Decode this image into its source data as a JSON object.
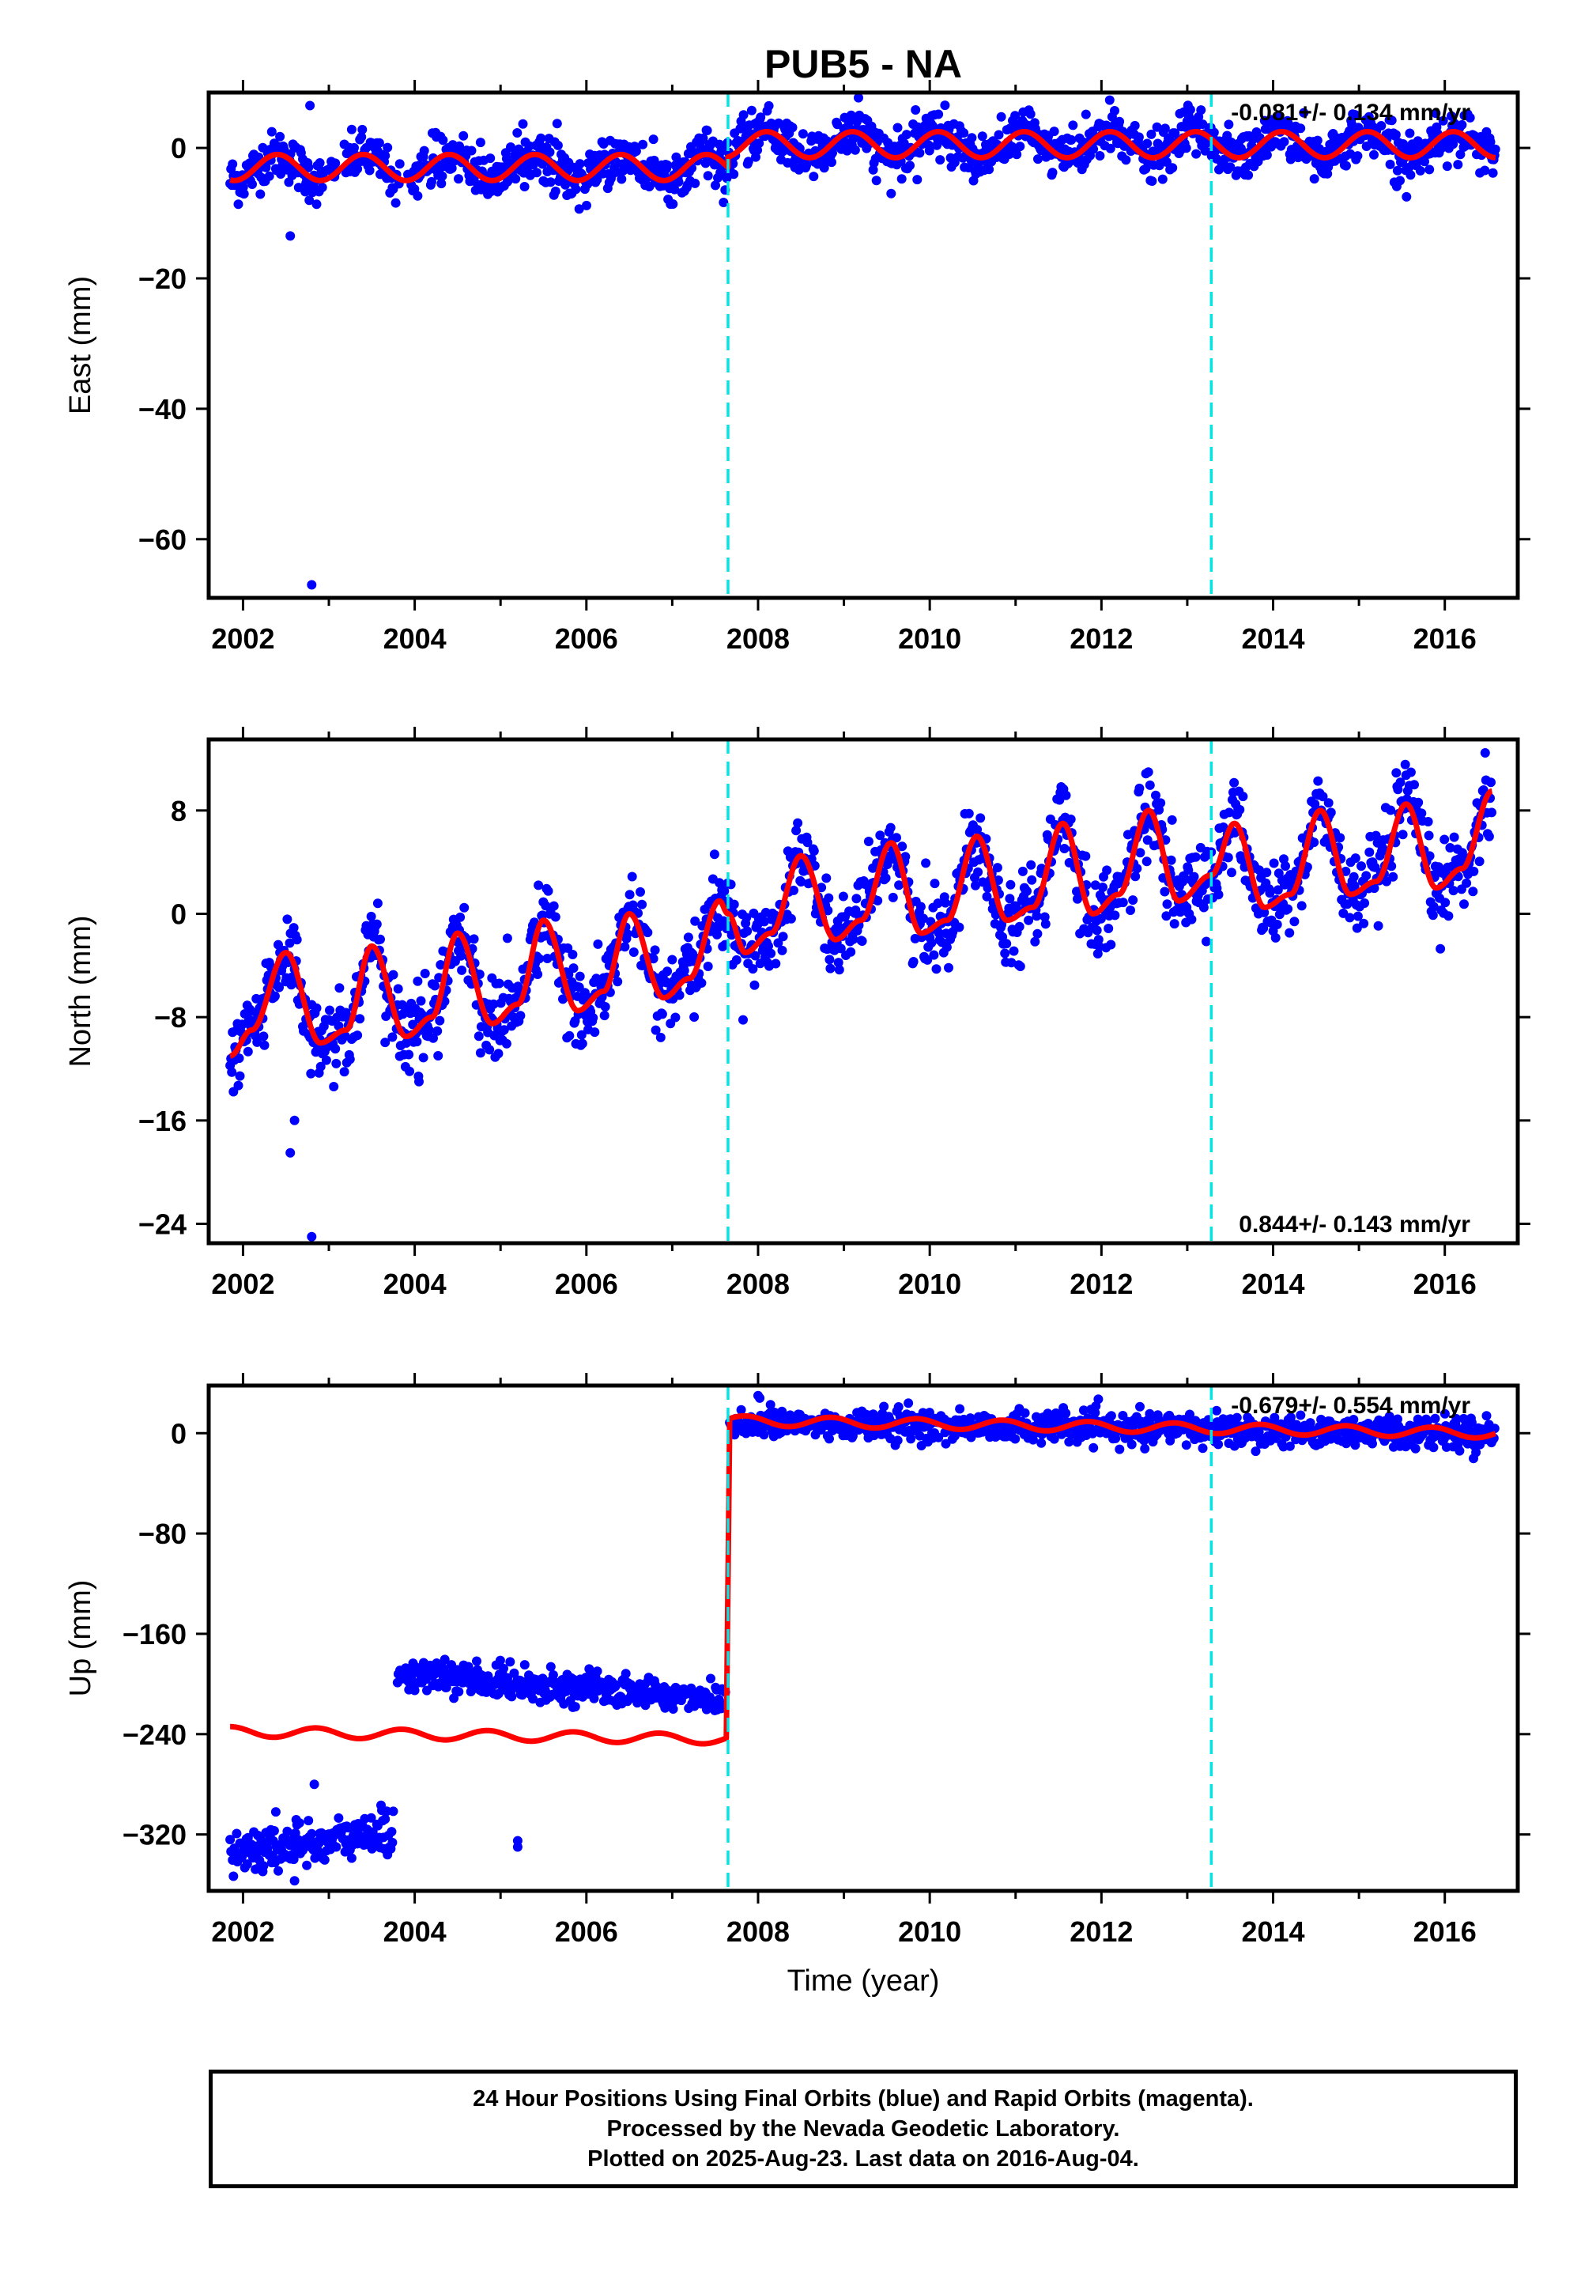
{
  "title": "PUB5 - NA",
  "colors": {
    "final_orbits": "#0000ff",
    "model": "#ff0000",
    "offsets": "#00e5e5",
    "frame": "#000000"
  },
  "chart_data": [
    {
      "type": "scatter",
      "panel": "east",
      "ylabel": "East (mm)",
      "xlabel": "",
      "xlim": [
        2001.6,
        2016.85
      ],
      "ylim": [
        -69,
        8.5
      ],
      "yticks": [
        0,
        -20,
        -40,
        -60
      ],
      "xticks": [
        2002,
        2004,
        2006,
        2008,
        2010,
        2012,
        2014,
        2016
      ],
      "rate_label": "-0.081+/- 0.134 mm/yr",
      "rate_position": "top-right",
      "offset_lines": [
        2007.65,
        2013.28
      ],
      "data_start": 2001.85,
      "data_end": 2016.59,
      "segments": [
        {
          "from": 2001.85,
          "to": 2007.65,
          "mean": -3.0,
          "amplitude": 2.0,
          "phase_peak": 0.4,
          "noise": 1.8
        },
        {
          "from": 2007.65,
          "to": 2016.59,
          "mean": 0.5,
          "amplitude": 2.0,
          "phase_peak": 0.1,
          "noise": 1.8
        }
      ],
      "outliers": [
        [
          2002.55,
          -13.5
        ],
        [
          2002.8,
          -67
        ],
        [
          2002.78,
          6.5
        ],
        [
          2009.55,
          -7
        ]
      ],
      "gaps": [
        [
          2002.9,
          2003.2
        ],
        [
          2003.75,
          2003.95
        ]
      ],
      "grid": false
    },
    {
      "type": "scatter",
      "panel": "north",
      "ylabel": "North (mm)",
      "xlabel": "",
      "rate_label": "0.844+/- 0.143 mm/yr",
      "rate_position": "bottom-right",
      "xlim": [
        2001.6,
        2016.85
      ],
      "ylim": [
        -25.5,
        13.5
      ],
      "yticks": [
        8,
        0,
        -8,
        -16,
        -24
      ],
      "xticks": [
        2002,
        2004,
        2006,
        2008,
        2010,
        2012,
        2014,
        2016
      ],
      "offset_lines": [
        2007.65,
        2013.28
      ],
      "model_knots": [
        [
          2001.85,
          -11
        ],
        [
          2002.1,
          -9
        ],
        [
          2002.5,
          -3
        ],
        [
          2002.9,
          -10
        ],
        [
          2003.2,
          -9
        ],
        [
          2003.5,
          -2.5
        ],
        [
          2003.9,
          -9.5
        ],
        [
          2004.2,
          -8
        ],
        [
          2004.5,
          -1.5
        ],
        [
          2004.9,
          -8.5
        ],
        [
          2005.2,
          -7
        ],
        [
          2005.5,
          -0.5
        ],
        [
          2005.9,
          -7.5
        ],
        [
          2006.2,
          -6
        ],
        [
          2006.5,
          0
        ],
        [
          2006.9,
          -6.5
        ],
        [
          2007.2,
          -5
        ],
        [
          2007.55,
          1
        ],
        [
          2007.65,
          0
        ],
        [
          2007.85,
          -3
        ],
        [
          2008.15,
          -1.5
        ],
        [
          2008.5,
          4.5
        ],
        [
          2008.9,
          -2
        ],
        [
          2009.2,
          -0.5
        ],
        [
          2009.55,
          5.5
        ],
        [
          2009.9,
          -1.5
        ],
        [
          2010.2,
          -0.5
        ],
        [
          2010.55,
          6
        ],
        [
          2010.9,
          -0.5
        ],
        [
          2011.2,
          0.5
        ],
        [
          2011.55,
          7
        ],
        [
          2011.9,
          0
        ],
        [
          2012.2,
          1.5
        ],
        [
          2012.55,
          8
        ],
        [
          2012.9,
          1
        ],
        [
          2013.28,
          3
        ],
        [
          2013.55,
          7
        ],
        [
          2013.9,
          0.5
        ],
        [
          2014.2,
          1.5
        ],
        [
          2014.55,
          8
        ],
        [
          2014.9,
          1.5
        ],
        [
          2015.2,
          2.5
        ],
        [
          2015.55,
          8.5
        ],
        [
          2015.9,
          2
        ],
        [
          2016.2,
          3.5
        ],
        [
          2016.55,
          9.5
        ]
      ],
      "noise": 1.6,
      "outliers": [
        [
          2002.55,
          -18.5
        ],
        [
          2002.8,
          -25
        ],
        [
          2002.6,
          -16
        ],
        [
          2004.05,
          -13
        ]
      ],
      "grid": false
    },
    {
      "type": "scatter",
      "panel": "up",
      "ylabel": "Up (mm)",
      "xlabel": "Time (year)",
      "rate_label": "-0.679+/- 0.554 mm/yr",
      "rate_position": "top-right",
      "xlim": [
        2001.6,
        2016.85
      ],
      "ylim": [
        -365,
        38
      ],
      "yticks": [
        0,
        -80,
        -160,
        -240,
        -320
      ],
      "xticks": [
        2002,
        2004,
        2006,
        2008,
        2010,
        2012,
        2014,
        2016
      ],
      "offset_lines": [
        2007.65,
        2013.28
      ],
      "data_segments": [
        {
          "from": 2001.85,
          "to": 2003.75,
          "start": -335,
          "end": -318,
          "noise": 9
        },
        {
          "from": 2003.8,
          "to": 2007.62,
          "start": -192,
          "end": -212,
          "noise": 6
        },
        {
          "from": 2007.67,
          "to": 2016.59,
          "start": 8,
          "end": 0,
          "noise": 6
        }
      ],
      "model_segments": [
        {
          "from": 2001.85,
          "to": 2007.63,
          "start": -238,
          "end": -244,
          "amplitude": 4
        },
        {
          "from": 2007.67,
          "to": 2016.59,
          "start": 10,
          "end": 0,
          "amplitude": 4
        }
      ],
      "outliers": [
        [
          2005.2,
          -325
        ],
        [
          2005.2,
          -330
        ],
        [
          2002.83,
          -280
        ],
        [
          2002.6,
          -357
        ],
        [
          2008.0,
          30
        ],
        [
          2008.02,
          28
        ]
      ],
      "grid": false
    }
  ],
  "footer": {
    "line1": "24 Hour Positions Using Final Orbits (blue) and Rapid Orbits (magenta).",
    "line2": "Processed by the Nevada Geodetic Laboratory.",
    "line3": "Plotted on 2025-Aug-23. Last data on 2016-Aug-04."
  }
}
